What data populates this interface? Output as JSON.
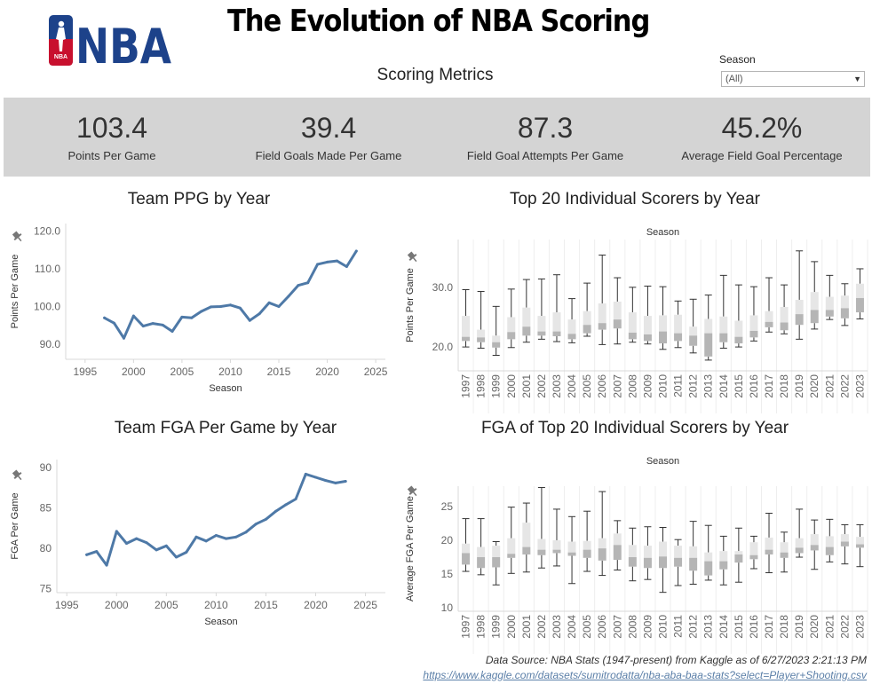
{
  "header": {
    "title": "The Evolution of NBA Scoring",
    "logo_text": "NBA",
    "logo_small_text": "NBA",
    "section_title": "Scoring Metrics"
  },
  "filter": {
    "label": "Season",
    "value": "(All)"
  },
  "kpis": [
    {
      "value": "103.4",
      "label": "Points Per Game"
    },
    {
      "value": "39.4",
      "label": "Field Goals Made Per Game"
    },
    {
      "value": "87.3",
      "label": "Field Goal Attempts Per Game"
    },
    {
      "value": "45.2%",
      "label": "Average Field Goal Percentage"
    }
  ],
  "colors": {
    "line": "#4e79a7",
    "kpi_band": "#d4d4d4",
    "box_light": "#e6e6e6",
    "box_dark": "#b5b5b5",
    "whisker": "#333333",
    "link": "#5b7fa8",
    "logo_blue": "#1d428a",
    "logo_red": "#c8102e"
  },
  "footer": {
    "source": "Data Source: NBA Stats (1947-present) from Kaggle as of 6/27/2023 2:21:13 PM",
    "link": "https://www.kaggle.com/datasets/sumitrodatta/nba-aba-baa-stats?select=Player+Shooting.csv"
  },
  "chart_data": [
    {
      "id": "team-ppg",
      "type": "line",
      "title": "Team PPG by Year",
      "xlabel": "Season",
      "ylabel": "Points Per Game",
      "xlim": [
        1993,
        2026
      ],
      "ylim": [
        86,
        122
      ],
      "xticks": [
        "1995",
        "2000",
        "2005",
        "2010",
        "2015",
        "2020",
        "2025"
      ],
      "yticks": [
        "90.0",
        "100.0",
        "110.0",
        "120.0"
      ],
      "x": [
        1997,
        1998,
        1999,
        2000,
        2001,
        2002,
        2003,
        2004,
        2005,
        2006,
        2007,
        2008,
        2009,
        2010,
        2011,
        2012,
        2013,
        2014,
        2015,
        2016,
        2017,
        2018,
        2019,
        2020,
        2021,
        2022,
        2023,
        2024
      ],
      "values": [
        97.0,
        95.6,
        91.6,
        97.5,
        94.8,
        95.5,
        95.1,
        93.4,
        97.2,
        97.0,
        98.7,
        99.9,
        100.0,
        100.4,
        99.6,
        96.3,
        98.1,
        101.0,
        100.0,
        102.7,
        105.6,
        106.3,
        111.2,
        111.8,
        112.1,
        110.6,
        114.7,
        null
      ]
    },
    {
      "id": "team-fga",
      "type": "line",
      "title": "Team FGA Per Game by Year",
      "xlabel": "Season",
      "ylabel": "FGA Per Game",
      "xlim": [
        1994,
        2027
      ],
      "ylim": [
        74.5,
        91
      ],
      "xticks": [
        "1995",
        "2000",
        "2005",
        "2010",
        "2015",
        "2020",
        "2025"
      ],
      "yticks": [
        "75",
        "80",
        "85",
        "90"
      ],
      "x": [
        1997,
        1998,
        1999,
        2000,
        2001,
        2002,
        2003,
        2004,
        2005,
        2006,
        2007,
        2008,
        2009,
        2010,
        2011,
        2012,
        2013,
        2014,
        2015,
        2016,
        2017,
        2018,
        2019,
        2020,
        2021,
        2022,
        2023,
        2024
      ],
      "values": [
        79.2,
        79.6,
        77.9,
        82.1,
        80.6,
        81.2,
        80.7,
        79.8,
        80.3,
        78.9,
        79.5,
        81.4,
        80.9,
        81.6,
        81.2,
        81.4,
        82.0,
        83.0,
        83.6,
        84.6,
        85.4,
        86.1,
        89.2,
        88.8,
        88.4,
        88.1,
        88.3,
        null
      ]
    },
    {
      "id": "top20-ppg",
      "type": "box",
      "title": "Top 20 Individual Scorers by Year",
      "subtitle": "Season",
      "ylabel": "Points Per Game",
      "ylim": [
        16,
        38
      ],
      "yticks": [
        "20.0",
        "30.0"
      ],
      "categories": [
        "1997",
        "1998",
        "1999",
        "2000",
        "2001",
        "2002",
        "2003",
        "2004",
        "2005",
        "2006",
        "2007",
        "2008",
        "2009",
        "2010",
        "2011",
        "2012",
        "2013",
        "2014",
        "2015",
        "2016",
        "2017",
        "2018",
        "2019",
        "2020",
        "2021",
        "2022",
        "2023"
      ],
      "series": [
        {
          "min": [
            20.0,
            19.8,
            18.6,
            19.9,
            20.8,
            21.3,
            20.9,
            20.7,
            21.8,
            20.4,
            20.5,
            20.8,
            20.5,
            19.6,
            19.9,
            19.0,
            17.8,
            19.8,
            20.0,
            21.0,
            22.5,
            22.2,
            21.3,
            23.0,
            24.6,
            23.6,
            24.7
          ],
          "q1": [
            21.0,
            20.8,
            19.9,
            21.3,
            21.9,
            21.9,
            21.8,
            21.3,
            22.3,
            22.9,
            23.1,
            21.3,
            21.0,
            20.6,
            21.0,
            20.2,
            18.4,
            20.8,
            20.6,
            21.6,
            23.3,
            22.8,
            23.7,
            24.0,
            25.1,
            24.8,
            25.8
          ],
          "median": [
            21.7,
            21.6,
            20.8,
            22.5,
            23.4,
            22.6,
            22.6,
            22.2,
            23.7,
            24.0,
            24.6,
            22.4,
            22.1,
            22.6,
            22.3,
            21.9,
            22.3,
            22.3,
            21.7,
            22.7,
            24.2,
            24.1,
            25.5,
            26.2,
            26.2,
            26.5,
            28.2
          ],
          "q3": [
            25.2,
            22.9,
            21.9,
            25.0,
            26.6,
            25.2,
            25.8,
            24.6,
            26.0,
            27.3,
            27.6,
            25.8,
            25.2,
            25.3,
            25.4,
            23.4,
            24.7,
            25.1,
            24.4,
            25.3,
            26.0,
            26.7,
            27.9,
            29.2,
            28.4,
            28.6,
            30.6
          ],
          "max": [
            29.6,
            29.3,
            26.8,
            29.7,
            31.3,
            31.4,
            32.1,
            28.1,
            30.7,
            35.4,
            31.6,
            30.0,
            30.2,
            30.1,
            27.7,
            28.0,
            28.7,
            32.0,
            30.4,
            30.1,
            31.6,
            30.4,
            36.1,
            34.3,
            32.0,
            30.6,
            33.1
          ]
        }
      ]
    },
    {
      "id": "top20-fga",
      "type": "box",
      "title": "FGA of Top 20 Individual Scorers by Year",
      "subtitle": "Season",
      "ylabel": "Average FGA Per Game",
      "ylim": [
        9.5,
        28
      ],
      "yticks": [
        "10",
        "15",
        "20",
        "25"
      ],
      "categories": [
        "1997",
        "1998",
        "1999",
        "2000",
        "2001",
        "2002",
        "2003",
        "2004",
        "2005",
        "2006",
        "2007",
        "2008",
        "2009",
        "2010",
        "2011",
        "2012",
        "2013",
        "2014",
        "2015",
        "2016",
        "2017",
        "2018",
        "2019",
        "2020",
        "2021",
        "2022",
        "2023"
      ],
      "series": [
        {
          "min": [
            15.4,
            14.9,
            13.4,
            15.1,
            15.3,
            15.9,
            16.2,
            13.6,
            15.4,
            14.8,
            15.6,
            14.0,
            14.2,
            12.3,
            13.3,
            13.5,
            14.1,
            13.4,
            13.8,
            15.8,
            15.2,
            15.3,
            17.5,
            15.7,
            16.8,
            16.5,
            16.1
          ],
          "q1": [
            16.4,
            15.9,
            16.0,
            17.4,
            17.9,
            17.8,
            18.1,
            17.7,
            17.4,
            17.0,
            17.1,
            16.1,
            15.9,
            15.9,
            16.1,
            15.5,
            14.8,
            15.7,
            16.7,
            17.2,
            17.9,
            17.4,
            18.1,
            18.5,
            17.8,
            19.1,
            18.9
          ],
          "median": [
            18.1,
            17.5,
            17.5,
            18.0,
            19.0,
            18.6,
            18.6,
            18.2,
            18.6,
            18.8,
            19.3,
            17.5,
            17.4,
            17.6,
            17.4,
            17.4,
            16.9,
            16.9,
            17.9,
            17.8,
            18.6,
            18.2,
            18.9,
            19.3,
            19.0,
            19.8,
            19.4
          ],
          "q3": [
            19.5,
            19.0,
            19.2,
            20.3,
            22.6,
            20.2,
            20.0,
            19.8,
            19.9,
            20.3,
            21.0,
            19.3,
            19.2,
            19.8,
            19.2,
            19.1,
            18.2,
            18.4,
            18.4,
            19.7,
            20.4,
            19.7,
            20.3,
            20.9,
            20.6,
            20.9,
            20.5
          ],
          "max": [
            23.2,
            23.2,
            19.8,
            24.9,
            25.5,
            27.8,
            24.6,
            23.5,
            24.3,
            27.2,
            22.9,
            21.8,
            22.0,
            21.9,
            20.1,
            22.8,
            22.2,
            20.6,
            21.8,
            20.6,
            24.0,
            21.2,
            24.6,
            23.0,
            23.1,
            22.3,
            22.3
          ]
        }
      ]
    }
  ]
}
